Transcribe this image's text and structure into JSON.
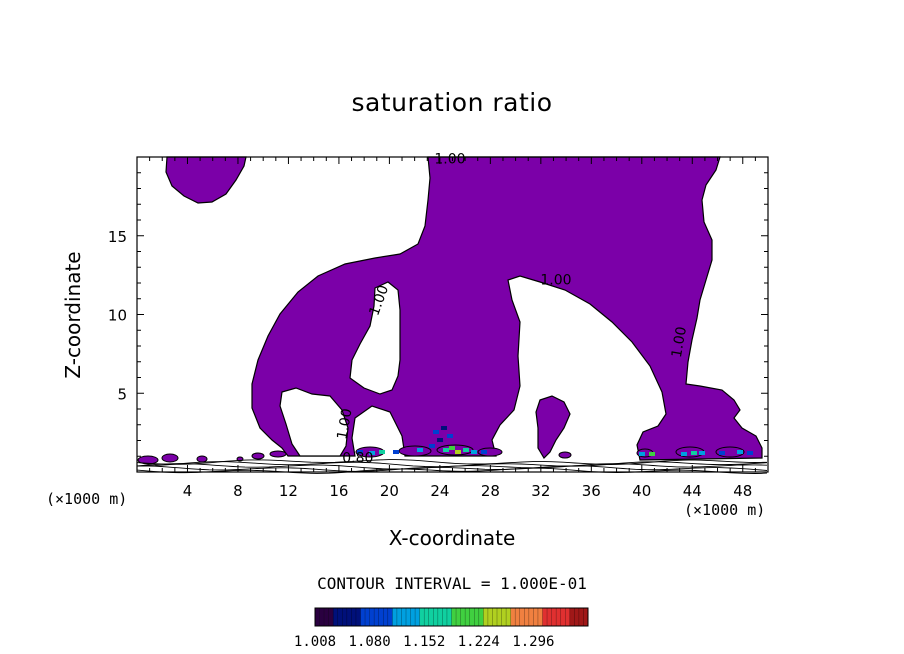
{
  "chart_data": {
    "type": "contour",
    "title": "saturation ratio",
    "xlabel": "X-coordinate",
    "ylabel": "Z-coordinate",
    "x_unit_label_left": "(×1000 m)",
    "x_unit_label_right": "(×1000 m)",
    "xlim": [
      0,
      50
    ],
    "ylim": [
      0,
      20
    ],
    "x_ticks": [
      4,
      8,
      12,
      16,
      20,
      24,
      28,
      32,
      36,
      40,
      44,
      48
    ],
    "x_tick_labels": [
      "4",
      "8",
      "12",
      "16",
      "20",
      "24",
      "28",
      "32",
      "36",
      "40",
      "44",
      "48"
    ],
    "y_ticks": [
      5,
      10,
      15
    ],
    "y_tick_labels": [
      "5",
      "10",
      "15"
    ],
    "contour_interval_text": "CONTOUR INTERVAL = 1.000E-01",
    "contour_labels": [
      {
        "text": "1.00",
        "x": 24.8,
        "y": 19.6
      },
      {
        "text": "1.00",
        "x": 33.2,
        "y": 11.9
      },
      {
        "text": "1.00",
        "x": 19.5,
        "y": 10.8
      },
      {
        "text": "1.00",
        "x": 43.3,
        "y": 8.2
      },
      {
        "text": "1.00",
        "x": 16.8,
        "y": 3.0
      },
      {
        "text": "0.80",
        "x": 17.5,
        "y": 0.6
      }
    ],
    "colorbar": {
      "tick_labels": [
        "1.008",
        "1.080",
        "1.152",
        "1.224",
        "1.296"
      ],
      "min": 1.008,
      "max": 1.368,
      "colors": [
        "#2a0040",
        "#00107a",
        "#0040d0",
        "#00a0e0",
        "#10d0a0",
        "#40d040",
        "#b0d020",
        "#f08040",
        "#e03030",
        "#a01818"
      ]
    },
    "fill_color": "#7b00a8"
  }
}
